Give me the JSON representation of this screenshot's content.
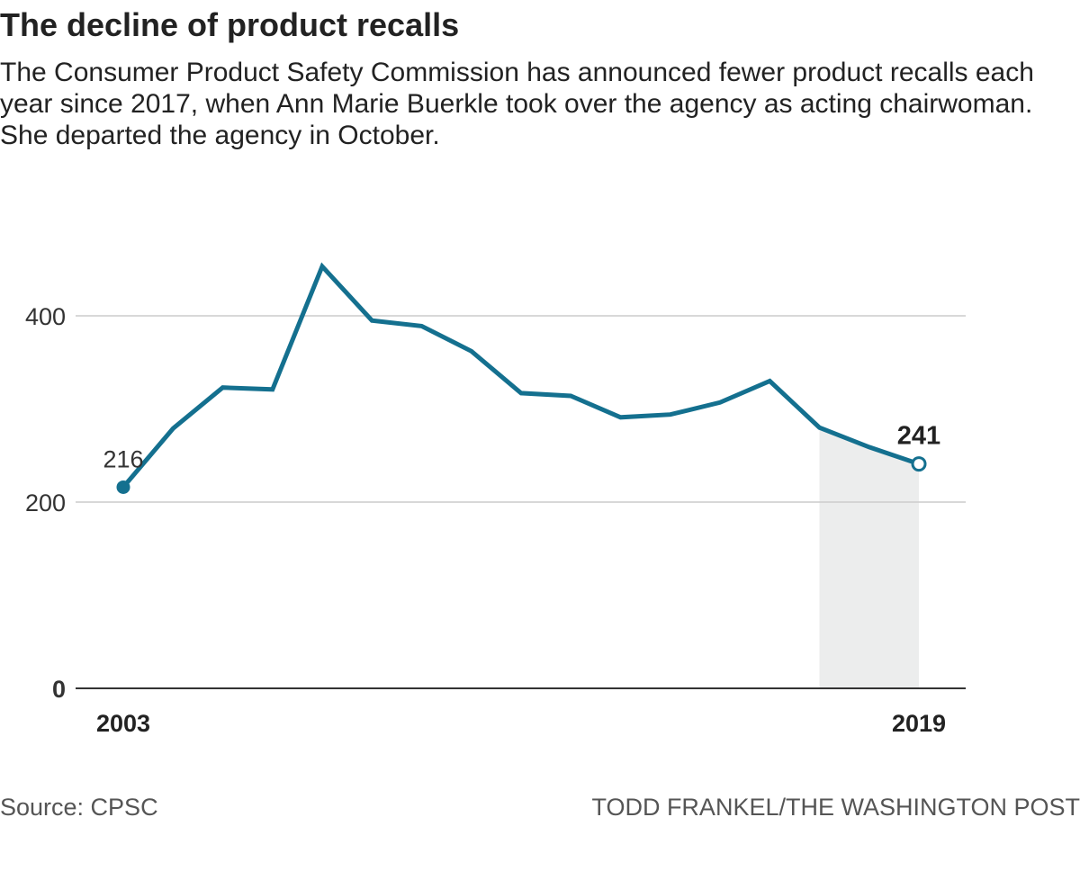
{
  "headline": {
    "title": "The decline of product recalls",
    "subtitle": "The Consumer Product Safety Commission has announced fewer product recalls each year since 2017, when Ann Marie Buerkle took over the agency as acting chairwoman. She departed the agency in October."
  },
  "chart_data": {
    "type": "line",
    "title": "The decline of product recalls",
    "xlabel": "",
    "ylabel": "",
    "x": [
      2003,
      2004,
      2005,
      2006,
      2007,
      2008,
      2009,
      2010,
      2011,
      2012,
      2013,
      2014,
      2015,
      2016,
      2017,
      2018,
      2019
    ],
    "series": [
      {
        "name": "Product recalls",
        "values": [
          216,
          279,
          323,
          321,
          453,
          395,
          389,
          362,
          317,
          314,
          291,
          294,
          307,
          330,
          280,
          259,
          241
        ]
      }
    ],
    "ylim": [
      0,
      460
    ],
    "yticks": [
      "400",
      "200",
      "0"
    ],
    "xticks": [
      "2003",
      "2019"
    ],
    "shaded_region": {
      "from": 2017,
      "to": 2019
    },
    "annotations": [
      {
        "year": 2003,
        "label": "216"
      },
      {
        "year": 2019,
        "label": "241"
      }
    ],
    "grid": true,
    "line_color": "#14708f",
    "shade_color": "#eceded",
    "grid_color": "#cccccc"
  },
  "footer": {
    "source": "Source: CPSC",
    "credit": "TODD FRANKEL/THE WASHINGTON POST"
  }
}
